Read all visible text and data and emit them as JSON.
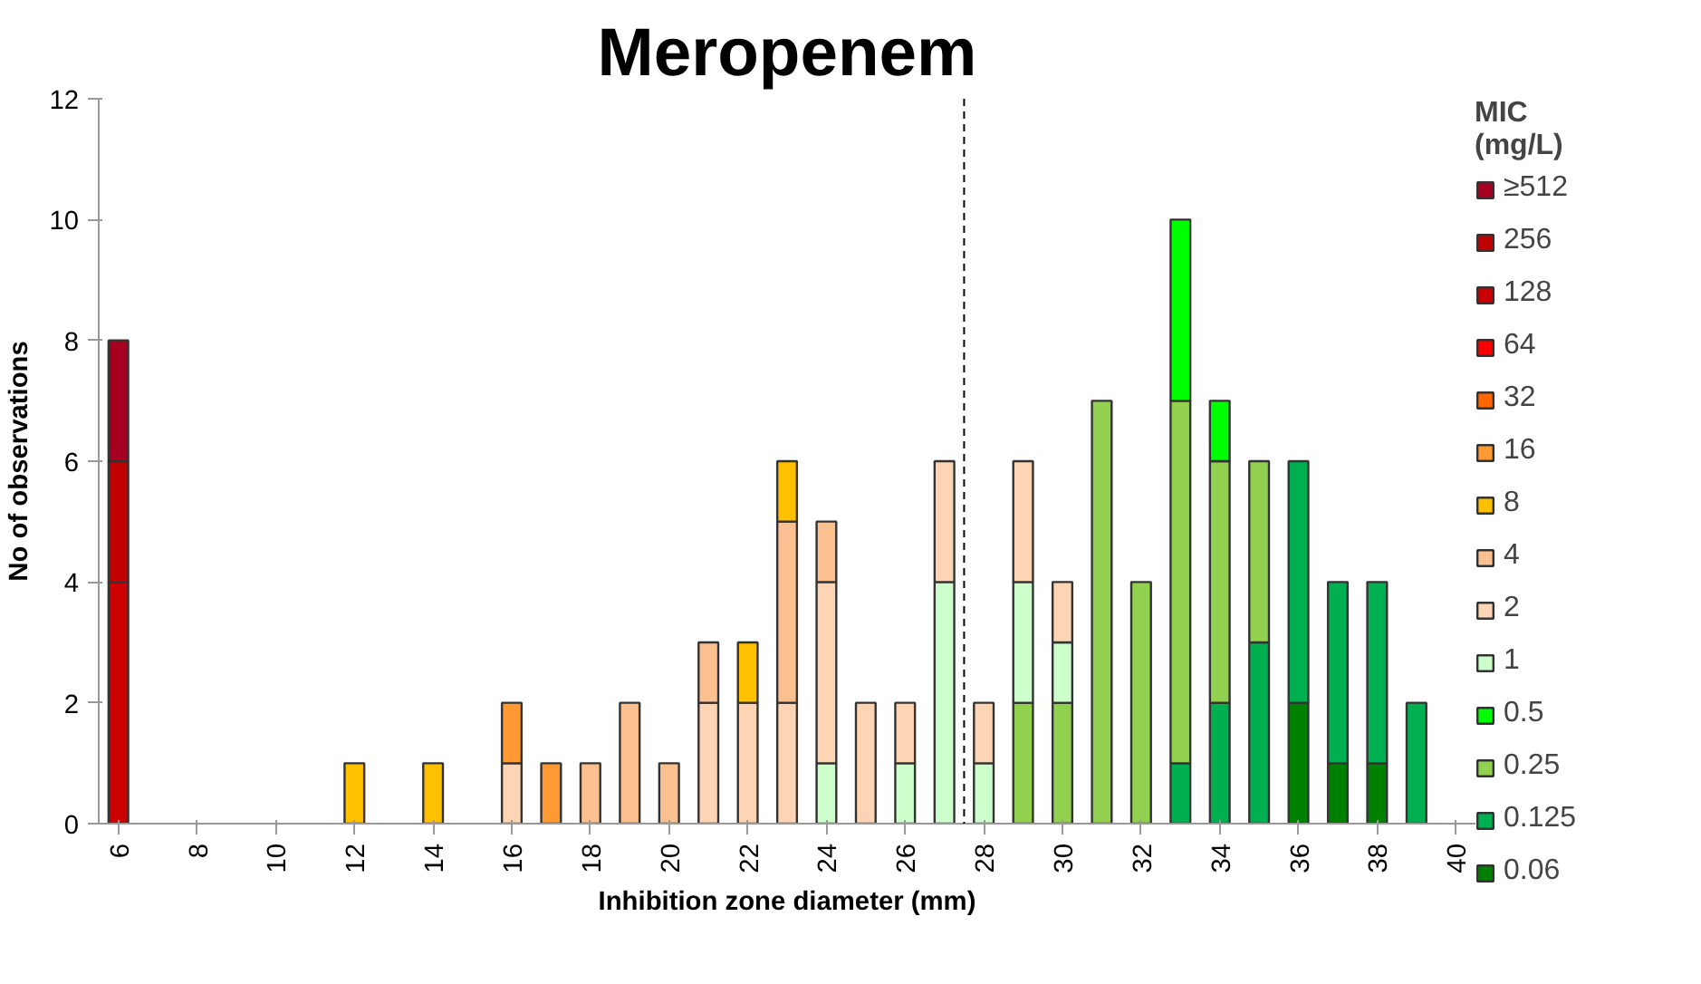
{
  "chart_data": {
    "type": "bar",
    "stacked": true,
    "title": "Meropenem",
    "xlabel": "Inhibition zone diameter (mm)",
    "ylabel": "No of observations",
    "legend_title": "MIC\n(mg/L)",
    "legend": "right",
    "grid": false,
    "x": [
      6,
      12,
      14,
      16,
      17,
      18,
      19,
      20,
      21,
      22,
      23,
      24,
      25,
      26,
      27,
      28,
      29,
      30,
      31,
      32,
      33,
      34,
      35,
      36,
      37,
      38,
      39
    ],
    "xlim": [
      5.5,
      40.5
    ],
    "xticks": [
      6,
      8,
      10,
      12,
      14,
      16,
      18,
      20,
      22,
      24,
      26,
      28,
      30,
      32,
      34,
      36,
      38,
      40
    ],
    "ylim": [
      0,
      12
    ],
    "yticks": [
      0,
      2,
      4,
      6,
      8,
      10,
      12
    ],
    "ref_lines": [
      {
        "axis": "x",
        "value": 27.5,
        "line_style": "dashed",
        "color": "#000000"
      }
    ],
    "series": [
      {
        "name": "0.06",
        "color": "#008000",
        "values": [
          null,
          null,
          null,
          null,
          null,
          null,
          null,
          null,
          null,
          null,
          null,
          null,
          null,
          null,
          null,
          null,
          null,
          null,
          null,
          null,
          null,
          null,
          null,
          2,
          1,
          1,
          null
        ]
      },
      {
        "name": "0.125",
        "color": "#00b050",
        "values": [
          null,
          null,
          null,
          null,
          null,
          null,
          null,
          null,
          null,
          null,
          null,
          null,
          null,
          null,
          null,
          null,
          null,
          null,
          null,
          null,
          1,
          2,
          3,
          4,
          3,
          3,
          2
        ]
      },
      {
        "name": "0.25",
        "color": "#92d050",
        "values": [
          null,
          null,
          null,
          null,
          null,
          null,
          null,
          null,
          null,
          null,
          null,
          null,
          null,
          null,
          null,
          null,
          2,
          2,
          7,
          4,
          6,
          4,
          3,
          null,
          null,
          null,
          null
        ]
      },
      {
        "name": "0.5",
        "color": "#00ff00",
        "values": [
          null,
          null,
          null,
          null,
          null,
          null,
          null,
          null,
          null,
          null,
          null,
          null,
          null,
          null,
          null,
          null,
          null,
          null,
          null,
          null,
          3,
          1,
          null,
          null,
          null,
          null,
          null
        ]
      },
      {
        "name": "1",
        "color": "#ccffcc",
        "values": [
          null,
          null,
          null,
          null,
          null,
          null,
          null,
          null,
          null,
          null,
          null,
          1,
          null,
          1,
          4,
          1,
          2,
          1,
          null,
          null,
          null,
          null,
          null,
          null,
          null,
          null,
          null
        ]
      },
      {
        "name": "2",
        "color": "#fdd5b4",
        "values": [
          null,
          null,
          null,
          1,
          null,
          null,
          null,
          null,
          2,
          2,
          2,
          3,
          2,
          1,
          2,
          1,
          2,
          1,
          null,
          null,
          null,
          null,
          null,
          null,
          null,
          null,
          null
        ]
      },
      {
        "name": "4",
        "color": "#fac090",
        "values": [
          null,
          null,
          null,
          null,
          null,
          1,
          2,
          1,
          1,
          null,
          3,
          1,
          null,
          null,
          null,
          null,
          null,
          null,
          null,
          null,
          null,
          null,
          null,
          null,
          null,
          null,
          null
        ]
      },
      {
        "name": "8",
        "color": "#ffc000",
        "values": [
          null,
          1,
          1,
          null,
          null,
          null,
          null,
          null,
          null,
          1,
          1,
          null,
          null,
          null,
          null,
          null,
          null,
          null,
          null,
          null,
          null,
          null,
          null,
          null,
          null,
          null,
          null
        ]
      },
      {
        "name": "16",
        "color": "#ff9933",
        "values": [
          null,
          null,
          null,
          1,
          1,
          null,
          null,
          null,
          null,
          null,
          null,
          null,
          null,
          null,
          null,
          null,
          null,
          null,
          null,
          null,
          null,
          null,
          null,
          null,
          null,
          null,
          null
        ]
      },
      {
        "name": "32",
        "color": "#ff6600",
        "values": [
          null,
          null,
          null,
          null,
          null,
          null,
          null,
          null,
          null,
          null,
          null,
          null,
          null,
          null,
          null,
          null,
          null,
          null,
          null,
          null,
          null,
          null,
          null,
          null,
          null,
          null,
          null
        ]
      },
      {
        "name": "64",
        "color": "#ff0000",
        "values": [
          null,
          null,
          null,
          null,
          null,
          null,
          null,
          null,
          null,
          null,
          null,
          null,
          null,
          null,
          null,
          null,
          null,
          null,
          null,
          null,
          null,
          null,
          null,
          null,
          null,
          null,
          null
        ]
      },
      {
        "name": "128",
        "color": "#cc0000",
        "values": [
          4,
          null,
          null,
          null,
          null,
          null,
          null,
          null,
          null,
          null,
          null,
          null,
          null,
          null,
          null,
          null,
          null,
          null,
          null,
          null,
          null,
          null,
          null,
          null,
          null,
          null,
          null
        ]
      },
      {
        "name": "256",
        "color": "#c00000",
        "values": [
          2,
          null,
          null,
          null,
          null,
          null,
          null,
          null,
          null,
          null,
          null,
          null,
          null,
          null,
          null,
          null,
          null,
          null,
          null,
          null,
          null,
          null,
          null,
          null,
          null,
          null,
          null
        ]
      },
      {
        "name": "≥512",
        "color": "#a50021",
        "values": [
          2,
          null,
          null,
          null,
          null,
          null,
          null,
          null,
          null,
          null,
          null,
          null,
          null,
          null,
          null,
          null,
          null,
          null,
          null,
          null,
          null,
          null,
          null,
          null,
          null,
          null,
          null
        ]
      }
    ]
  }
}
